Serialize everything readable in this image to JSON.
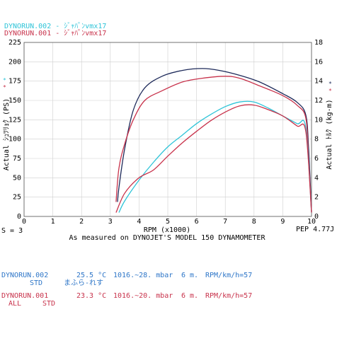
{
  "header": {
    "run2_label": "DYNORUN.002 - ｼﾞｬﾊﾟﾝvmx17",
    "run1_label": "DYNORUN.001 - ｼﾞｬﾊﾟﾝvmx17",
    "run2_color": "#2ec4d8",
    "run1_color": "#c8324b"
  },
  "chart_data": {
    "type": "line",
    "xlabel": "RPM (x1000)",
    "ylabel_left": "Actual ｼｭﾂﾘｮｸ (PS)",
    "ylabel_right": "Actual ﾄﾙｸ (kg-m)",
    "subtitle": "As measured on DYNOJET'S MODEL 150 DYNAMOMETER",
    "smoothing": "S = 3",
    "peak_note": "PEP 4.77J",
    "xlim": [
      0,
      10
    ],
    "ylim_left": [
      0,
      225
    ],
    "ylim_right": [
      0,
      18
    ],
    "x_ticks": [
      "0",
      "1",
      "2",
      "3",
      "4",
      "5",
      "6",
      "7",
      "8",
      "9",
      "10"
    ],
    "y_ticks_left": [
      "0",
      "25",
      "50",
      "75",
      "100",
      "125",
      "150",
      "175",
      "200",
      "225"
    ],
    "y_ticks_right": [
      "0",
      "2",
      "4",
      "6",
      "8",
      "10",
      "12",
      "14",
      "16",
      "18"
    ],
    "grid": true,
    "series": [
      {
        "name": "DYNORUN.002 torque",
        "color": "#1e2a5a",
        "axis": "right",
        "x": [
          3.25,
          3.3,
          3.5,
          3.8,
          4.2,
          4.8,
          5.5,
          6.2,
          6.8,
          7.5,
          8.2,
          9.0,
          9.5,
          9.8,
          9.9,
          10.0
        ],
        "y": [
          1.5,
          3.0,
          7.0,
          11.0,
          13.3,
          14.5,
          15.1,
          15.3,
          15.1,
          14.6,
          13.9,
          12.7,
          11.8,
          10.5,
          7.0,
          0.5
        ]
      },
      {
        "name": "DYNORUN.001 torque",
        "color": "#c8324b",
        "axis": "right",
        "x": [
          3.2,
          3.3,
          3.5,
          3.8,
          4.2,
          4.8,
          5.5,
          6.2,
          7.0,
          7.5,
          8.2,
          9.0,
          9.5,
          9.8,
          9.9,
          10.0
        ],
        "y": [
          1.5,
          5.0,
          7.5,
          10.0,
          12.0,
          13.0,
          13.9,
          14.3,
          14.5,
          14.3,
          13.5,
          12.5,
          11.5,
          10.2,
          6.0,
          0.5
        ]
      },
      {
        "name": "DYNORUN.002 power",
        "color": "#2ec4d8",
        "axis": "left",
        "x": [
          3.3,
          3.5,
          4.0,
          4.5,
          5.0,
          5.5,
          6.0,
          6.5,
          7.0,
          7.5,
          8.0,
          8.5,
          9.0,
          9.5,
          9.8,
          10.0
        ],
        "y": [
          5,
          20,
          47,
          70,
          90,
          105,
          120,
          132,
          142,
          148,
          148,
          140,
          130,
          120,
          115,
          5
        ]
      },
      {
        "name": "DYNORUN.001 power",
        "color": "#c8324b",
        "axis": "left",
        "x": [
          3.2,
          3.5,
          4.0,
          4.5,
          5.0,
          5.5,
          6.0,
          6.5,
          7.0,
          7.5,
          8.0,
          8.5,
          9.0,
          9.5,
          9.8,
          10.0
        ],
        "y": [
          5,
          30,
          50,
          60,
          78,
          95,
          110,
          124,
          135,
          143,
          144,
          138,
          130,
          117,
          110,
          5
        ]
      }
    ]
  },
  "runs": [
    {
      "label": "DYNORUN.002",
      "temp": "25.5 °C",
      "pressure": "1016.~28. mbar",
      "length": "6 m.",
      "rpm": "RPM/km/h=57",
      "line2_a": "STD",
      "line2_b": "まふら-れす",
      "color": "#2e76c8"
    },
    {
      "label": "DYNORUN.001",
      "temp": "23.3 °C",
      "pressure": "1016.~20. mbar",
      "length": "6 m.",
      "rpm": "RPM/km/h=57",
      "line2_a": "ALL",
      "line2_b": "STD",
      "color": "#c8324b"
    }
  ]
}
